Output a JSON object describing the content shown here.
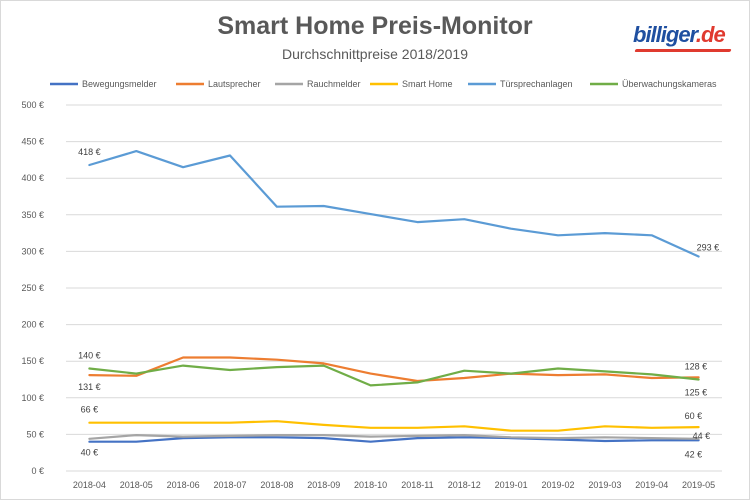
{
  "header": {
    "title": "Smart Home Preis-Monitor",
    "subtitle": "Durchschnittpreise 2018/2019",
    "logo_text": "billiger.de"
  },
  "chart_data": {
    "type": "line",
    "title": "Smart Home Preis-Monitor",
    "subtitle": "Durchschnittpreise 2018/2019",
    "xlabel": "",
    "ylabel": "",
    "ylim": [
      0,
      500
    ],
    "y_ticks": [
      0,
      50,
      100,
      150,
      200,
      250,
      300,
      350,
      400,
      450,
      500
    ],
    "y_unit": "€",
    "grid": true,
    "legend_position": "top",
    "categories": [
      "2018-04",
      "2018-05",
      "2018-06",
      "2018-07",
      "2018-08",
      "2018-09",
      "2018-10",
      "2018-11",
      "2018-12",
      "2019-01",
      "2019-02",
      "2019-03",
      "2019-04",
      "2019-05"
    ],
    "series": [
      {
        "name": "Bewegungsmelder",
        "color": "#4472c4",
        "values": [
          40,
          40,
          45,
          46,
          46,
          45,
          40,
          45,
          46,
          45,
          43,
          41,
          42,
          42
        ],
        "labels": {
          "0": "40 €",
          "13": "42 €"
        }
      },
      {
        "name": "Lautsprecher",
        "color": "#ed7d31",
        "values": [
          131,
          130,
          155,
          155,
          152,
          147,
          133,
          123,
          127,
          133,
          131,
          132,
          127,
          128
        ],
        "labels": {
          "0": "131 €",
          "13": "128 €"
        }
      },
      {
        "name": "Rauchmelder",
        "color": "#a5a5a5",
        "values": [
          44,
          49,
          47,
          48,
          49,
          49,
          47,
          48,
          49,
          46,
          45,
          46,
          45,
          44
        ],
        "labels": {
          "13": "44 €"
        }
      },
      {
        "name": "Smart Home",
        "color": "#ffc000",
        "values": [
          66,
          66,
          66,
          66,
          68,
          63,
          59,
          59,
          61,
          55,
          55,
          61,
          59,
          60
        ],
        "labels": {
          "0": "66 €",
          "13": "60 €"
        }
      },
      {
        "name": "Türsprechanlagen",
        "color": "#5b9bd5",
        "values": [
          418,
          437,
          415,
          431,
          361,
          362,
          351,
          340,
          344,
          331,
          322,
          325,
          322,
          293
        ],
        "labels": {
          "0": "418 €",
          "13": "293 €"
        }
      },
      {
        "name": "Überwachungskameras",
        "color": "#70ad47",
        "values": [
          140,
          133,
          144,
          138,
          142,
          144,
          117,
          121,
          137,
          133,
          140,
          136,
          132,
          125
        ],
        "labels": {
          "0": "140 €",
          "13": "125 €"
        }
      }
    ]
  }
}
